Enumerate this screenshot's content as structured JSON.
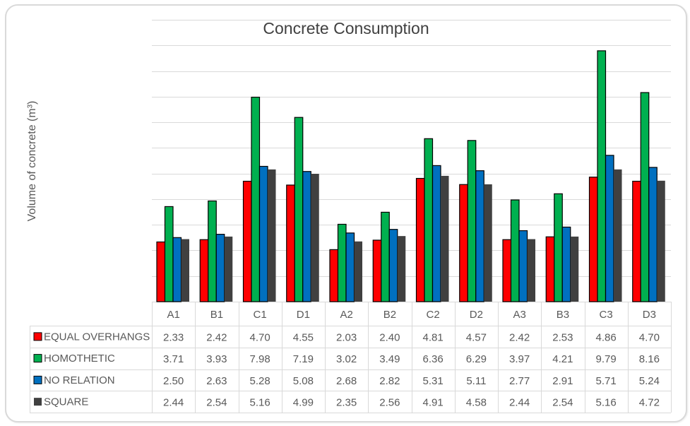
{
  "chart_data": {
    "type": "bar",
    "title": "Concrete Consumption",
    "xlabel": "",
    "ylabel": "Volume of  concrete (m³)",
    "ylim": [
      0,
      11
    ],
    "y_tick_step": 1,
    "y_tick_labels_shown": false,
    "grid": true,
    "legend": "data-table-bottom",
    "categories": [
      "A1",
      "B1",
      "C1",
      "D1",
      "A2",
      "B2",
      "C2",
      "D2",
      "A3",
      "B3",
      "C3",
      "D3"
    ],
    "series": [
      {
        "name": "EQUAL OVERHANGS",
        "color": "#ff0000",
        "bordered": true,
        "values": [
          2.33,
          2.42,
          4.7,
          4.55,
          2.03,
          2.4,
          4.81,
          4.57,
          2.42,
          2.53,
          4.86,
          4.7
        ],
        "labels": [
          "2.33",
          "2.42",
          "4.70",
          "4.55",
          "2.03",
          "2.40",
          "4.81",
          "4.57",
          "2.42",
          "2.53",
          "4.86",
          "4.70"
        ]
      },
      {
        "name": "HOMOTHETIC",
        "color": "#00b050",
        "bordered": true,
        "values": [
          3.71,
          3.93,
          7.98,
          7.19,
          3.02,
          3.49,
          6.36,
          6.29,
          3.97,
          4.21,
          9.79,
          8.16
        ],
        "labels": [
          "3.71",
          "3.93",
          "7.98",
          "7.19",
          "3.02",
          "3.49",
          "6.36",
          "6.29",
          "3.97",
          "4.21",
          "9.79",
          "8.16"
        ]
      },
      {
        "name": "NO RELATION",
        "color": "#0070c0",
        "bordered": true,
        "values": [
          2.5,
          2.63,
          5.28,
          5.08,
          2.68,
          2.82,
          5.31,
          5.11,
          2.77,
          2.91,
          5.71,
          5.24
        ],
        "labels": [
          "2.50",
          "2.63",
          "5.28",
          "5.08",
          "2.68",
          "2.82",
          "5.31",
          "5.11",
          "2.77",
          "2.91",
          "5.71",
          "5.24"
        ]
      },
      {
        "name": "SQUARE",
        "color": "#404040",
        "bordered": false,
        "values": [
          2.44,
          2.54,
          5.16,
          4.99,
          2.35,
          2.56,
          4.91,
          4.58,
          2.44,
          2.54,
          5.16,
          4.72
        ],
        "labels": [
          "2.44",
          "2.54",
          "5.16",
          "4.99",
          "2.35",
          "2.56",
          "4.91",
          "4.58",
          "2.44",
          "2.54",
          "5.16",
          "4.72"
        ]
      }
    ]
  }
}
